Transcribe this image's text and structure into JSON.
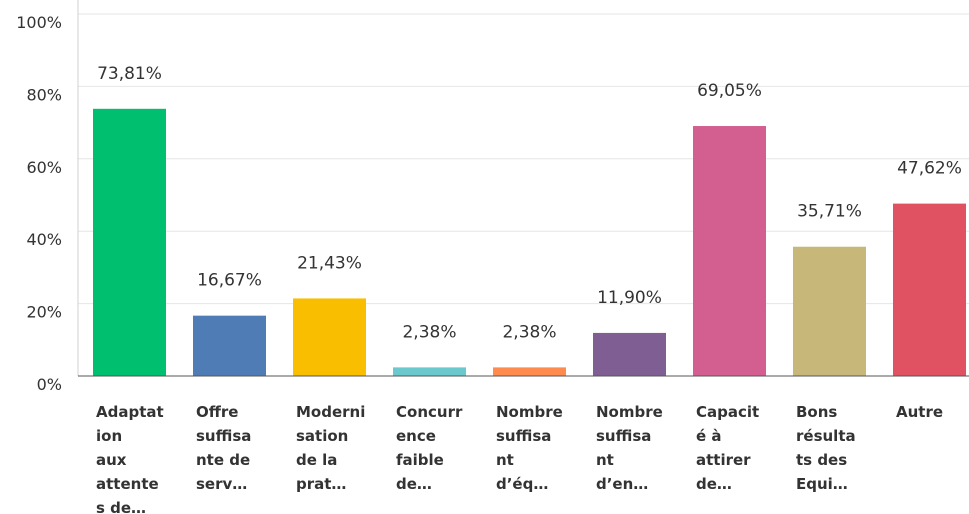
{
  "chart_data": {
    "type": "bar",
    "categories": [
      [
        "Adaptat",
        "ion",
        "aux",
        "attente",
        "s de…"
      ],
      [
        "Offre",
        "suffisa",
        "nte de",
        "serv…"
      ],
      [
        "Moderni",
        "sation",
        "de la",
        "prat…"
      ],
      [
        "Concurr",
        "ence",
        "faible",
        "de…"
      ],
      [
        "Nombre",
        "suffisa",
        "nt",
        "d’éq…"
      ],
      [
        "Nombre",
        "suffisa",
        "nt",
        "d’en…"
      ],
      [
        "Capacit",
        "é à",
        "attirer",
        "de…"
      ],
      [
        "Bons",
        "résulta",
        "ts des",
        "Equi…"
      ],
      [
        "Autre"
      ]
    ],
    "values": [
      73.81,
      16.67,
      21.43,
      2.38,
      2.38,
      11.9,
      69.05,
      35.71,
      47.62
    ],
    "value_labels": [
      "73,81%",
      "16,67%",
      "21,43%",
      "2,38%",
      "2,38%",
      "11,90%",
      "69,05%",
      "35,71%",
      "47,62%"
    ],
    "colors": [
      "#00bf6f",
      "#507cb6",
      "#f9be00",
      "#6bc8cd",
      "#ff8b4f",
      "#7f5f93",
      "#d25f90",
      "#c7b879",
      "#e05162"
    ],
    "ylim": [
      0,
      100
    ],
    "yticks": [
      {
        "value": 0,
        "label": "0%"
      },
      {
        "value": 20,
        "label": "20%"
      },
      {
        "value": 40,
        "label": "40%"
      },
      {
        "value": 60,
        "label": "60%"
      },
      {
        "value": 80,
        "label": "80%"
      },
      {
        "value": 100,
        "label": "100%"
      }
    ],
    "grid": true
  }
}
